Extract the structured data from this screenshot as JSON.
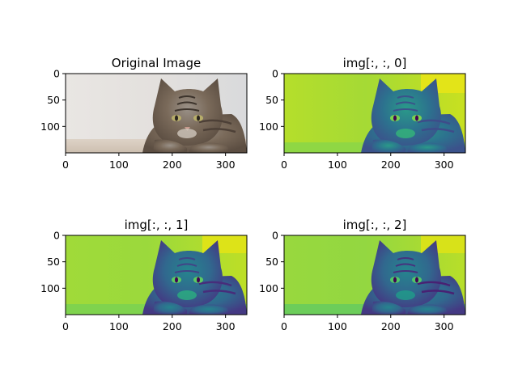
{
  "figure": {
    "panels": [
      {
        "title": "Original Image",
        "colormap": "original",
        "x_ticks": [
          "0",
          "100",
          "200",
          "300"
        ],
        "y_ticks": [
          "0",
          "50",
          "100"
        ]
      },
      {
        "title": "img[:, :, 0]",
        "colormap": "viridis",
        "x_ticks": [
          "0",
          "100",
          "200",
          "300"
        ],
        "y_ticks": [
          "0",
          "50",
          "100"
        ]
      },
      {
        "title": "img[:, :, 1]",
        "colormap": "viridis",
        "x_ticks": [
          "0",
          "100",
          "200",
          "300"
        ],
        "y_ticks": [
          "0",
          "50",
          "100"
        ]
      },
      {
        "title": "img[:, :, 2]",
        "colormap": "viridis",
        "x_ticks": [
          "0",
          "100",
          "200",
          "300"
        ],
        "y_ticks": [
          "0",
          "50",
          "100"
        ]
      }
    ],
    "colors": {
      "viridis_dark": "#31688e",
      "viridis_teal": "#21918c",
      "viridis_green": "#5ec962",
      "viridis_yellowgreen": "#a8db34",
      "viridis_yellow": "#fde725",
      "original_background": "#e8e5e2",
      "original_floor": "#d8cdc0",
      "cat_fur_gray": "#8a8580",
      "cat_fur_brown": "#6f5d4e",
      "cat_fur_dark": "#3a332d"
    },
    "image_content": "tabby cat lying down, looking at camera"
  }
}
